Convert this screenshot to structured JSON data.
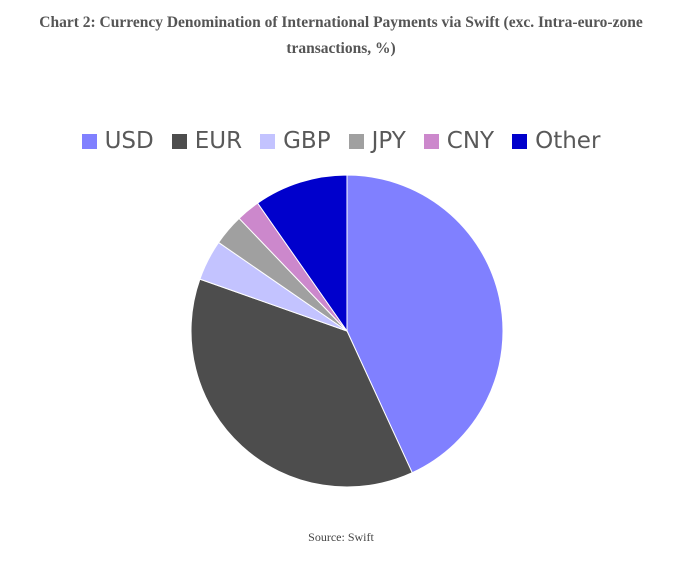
{
  "title": "Chart 2: Currency Denomination of International Payments via Swift (exc. Intra-euro-zone transactions, %)",
  "source": "Source: Swift",
  "chart_data": {
    "type": "pie",
    "title": "Chart 2: Currency Denomination of International Payments via Swift (exc. Intra-euro-zone transactions, %)",
    "start_angle_deg": 0,
    "direction": "clockwise",
    "legend_position": "top",
    "data_labels": false,
    "categories": [
      "USD",
      "EUR",
      "GBP",
      "JPY",
      "CNY",
      "Other"
    ],
    "values": [
      44,
      38,
      4.3,
      3.3,
      2.5,
      9.9
    ],
    "colors": [
      "#8080ff",
      "#4d4d4d",
      "#c3c3ff",
      "#a0a0a0",
      "#cc88cc",
      "#0000cc"
    ]
  }
}
